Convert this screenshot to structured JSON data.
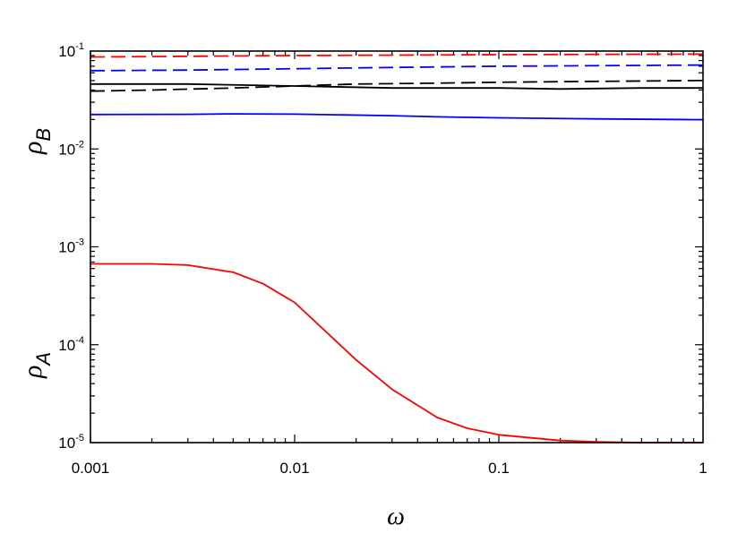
{
  "chart_data": {
    "type": "line",
    "xscale": "log",
    "yscale": "log",
    "xlim": [
      0.001,
      1
    ],
    "ylim": [
      1e-05,
      0.1
    ],
    "xlabel": "ω",
    "ylabels": [
      {
        "symbol": "ρ",
        "sub": "B"
      },
      {
        "symbol": "ρ",
        "sub": "A"
      }
    ],
    "x_ticks": [
      {
        "value": 0.001,
        "label": "0.001"
      },
      {
        "value": 0.01,
        "label": "0.01"
      },
      {
        "value": 0.1,
        "label": "0.1"
      },
      {
        "value": 1,
        "label": "1"
      }
    ],
    "y_ticks": [
      {
        "value": 0.1,
        "base": "10",
        "exp": "-1"
      },
      {
        "value": 0.01,
        "base": "10",
        "exp": "-2"
      },
      {
        "value": 0.001,
        "base": "10",
        "exp": "-3"
      },
      {
        "value": 0.0001,
        "base": "10",
        "exp": "-4"
      },
      {
        "value": 1e-05,
        "base": "10",
        "exp": "-5"
      }
    ],
    "grid": false,
    "legend": "none",
    "series": [
      {
        "color": "#ff0000",
        "dash": "dashed",
        "x": [
          0.001,
          0.01,
          0.1,
          1
        ],
        "y": [
          0.087,
          0.09,
          0.092,
          0.093
        ]
      },
      {
        "color": "#0000ff",
        "dash": "dashed",
        "x": [
          0.001,
          0.003,
          0.01,
          0.03,
          0.1,
          0.3,
          1
        ],
        "y": [
          0.063,
          0.064,
          0.066,
          0.068,
          0.07,
          0.071,
          0.072
        ]
      },
      {
        "color": "#000000",
        "dash": "dashed",
        "x": [
          0.001,
          0.002,
          0.005,
          0.01,
          0.02,
          0.05,
          0.1,
          0.3,
          1
        ],
        "y": [
          0.039,
          0.04,
          0.042,
          0.044,
          0.046,
          0.047,
          0.048,
          0.049,
          0.05
        ]
      },
      {
        "color": "#000000",
        "dash": "solid",
        "x": [
          0.001,
          0.003,
          0.01,
          0.03,
          0.1,
          0.2,
          0.5,
          1
        ],
        "y": [
          0.046,
          0.046,
          0.044,
          0.042,
          0.042,
          0.041,
          0.042,
          0.042
        ]
      },
      {
        "color": "#0000ff",
        "dash": "solid",
        "x": [
          0.001,
          0.003,
          0.005,
          0.01,
          0.03,
          0.05,
          0.1,
          0.3,
          1
        ],
        "y": [
          0.0225,
          0.0226,
          0.0228,
          0.0227,
          0.0219,
          0.0213,
          0.0208,
          0.0203,
          0.0199
        ]
      },
      {
        "color": "#ff0000",
        "dash": "solid",
        "x": [
          0.001,
          0.002,
          0.003,
          0.005,
          0.007,
          0.01,
          0.02,
          0.03,
          0.05,
          0.07,
          0.1,
          0.2,
          0.3,
          0.5,
          1
        ],
        "y": [
          0.00067,
          0.00067,
          0.00065,
          0.00055,
          0.00042,
          0.00027,
          7e-05,
          3.5e-05,
          1.8e-05,
          1.4e-05,
          1.2e-05,
          1.05e-05,
          1.02e-05,
          1e-05,
          1e-05
        ]
      }
    ]
  }
}
